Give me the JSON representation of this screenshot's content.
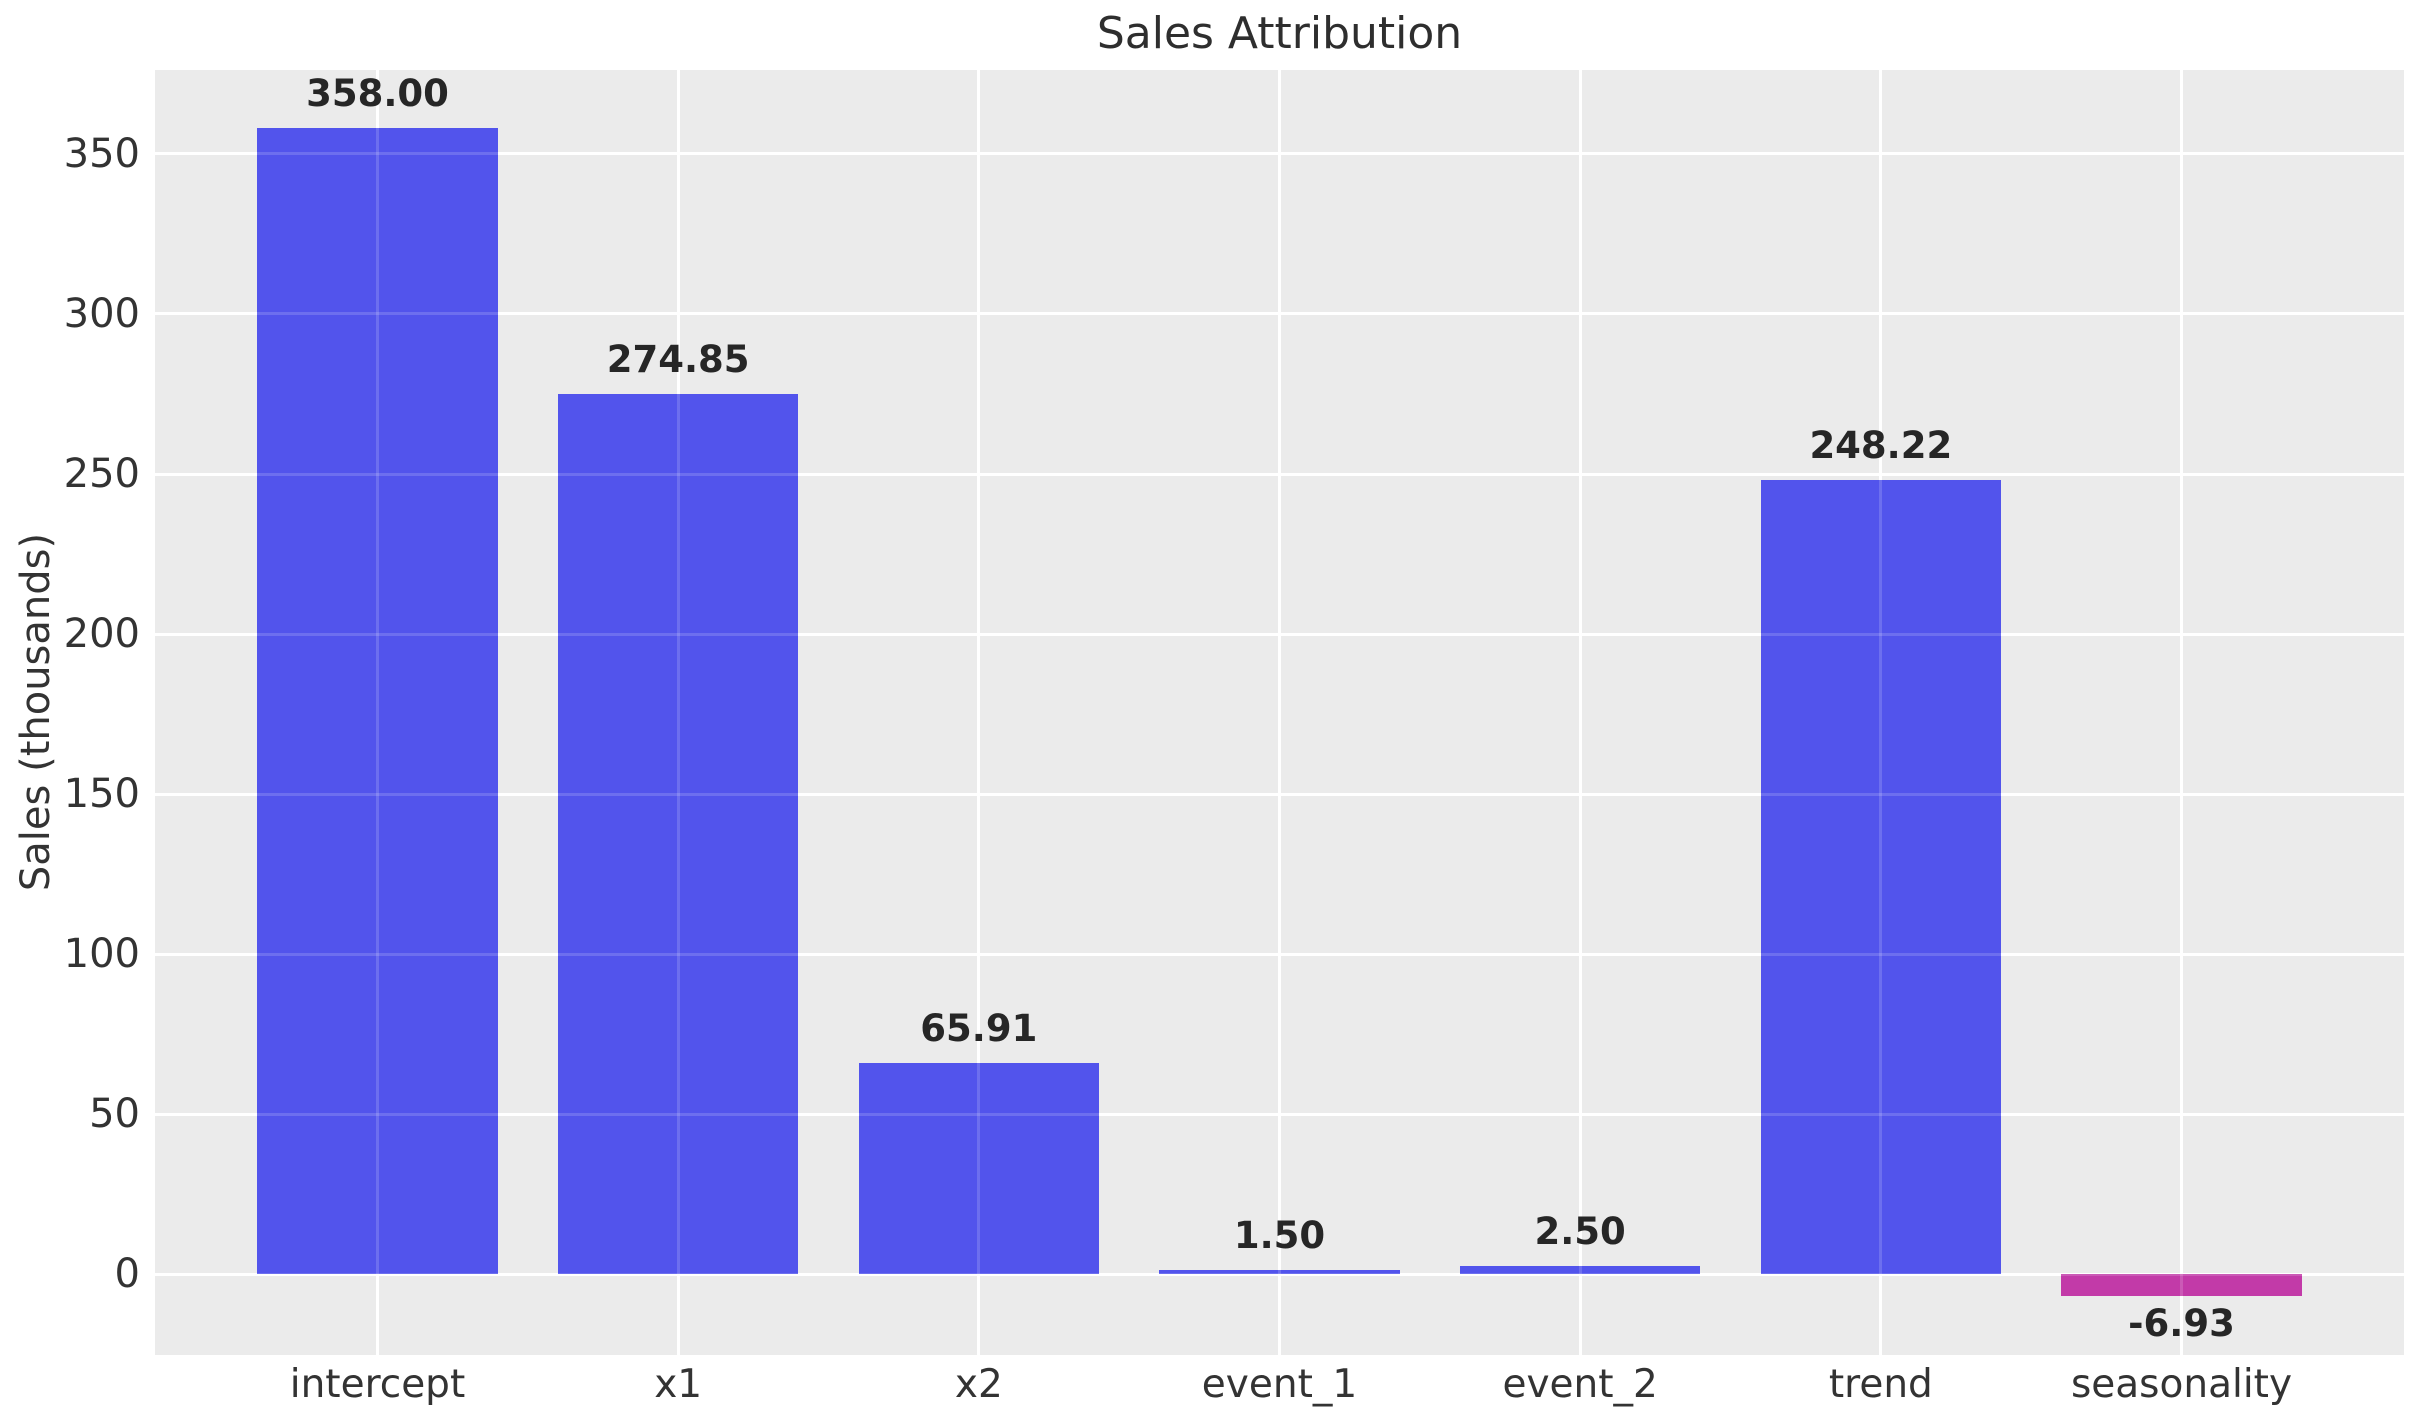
{
  "chart_data": {
    "type": "bar",
    "title": "Sales Attribution",
    "xlabel": "",
    "ylabel": "Sales (thousands)",
    "categories": [
      "intercept",
      "x1",
      "x2",
      "event_1",
      "event_2",
      "trend",
      "seasonality"
    ],
    "values": [
      358.0,
      274.85,
      65.91,
      1.5,
      2.5,
      248.22,
      -6.93
    ],
    "bar_labels": [
      "358.00",
      "274.85",
      "65.91",
      "1.50",
      "2.50",
      "248.22",
      "-6.93"
    ],
    "yticks": [
      0,
      50,
      100,
      150,
      200,
      250,
      300,
      350
    ],
    "ytick_labels": [
      "0",
      "50",
      "100",
      "150",
      "200",
      "250",
      "300",
      "350"
    ],
    "ylim": [
      -25.2,
      376.2
    ],
    "xlim_units": [
      -0.74,
      6.74
    ],
    "bar_width_units": 0.8,
    "grid": "on",
    "legend_position": "none",
    "colors": {
      "positive_bar": "#5254ec",
      "negative_bar": "#c23aa8",
      "plot_background": "#ebebeb",
      "figure_background": "#ffffff",
      "gridline": "#ffffff",
      "title_text": "#2e2e2e",
      "tick_text": "#333333",
      "value_label_text": "#262626"
    }
  }
}
